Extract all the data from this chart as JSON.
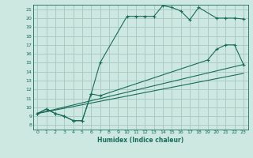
{
  "xlabel": "Humidex (Indice chaleur)",
  "bg_color": "#cce8e0",
  "grid_color": "#aaccc4",
  "line_color": "#1a6b5a",
  "xlim": [
    -0.5,
    23.5
  ],
  "ylim": [
    7.5,
    21.5
  ],
  "xticks": [
    0,
    1,
    2,
    3,
    4,
    5,
    6,
    7,
    8,
    9,
    10,
    11,
    12,
    13,
    14,
    15,
    16,
    17,
    18,
    19,
    20,
    21,
    22,
    23
  ],
  "yticks": [
    8,
    9,
    10,
    11,
    12,
    13,
    14,
    15,
    16,
    17,
    18,
    19,
    20,
    21
  ],
  "series": [
    {
      "x": [
        0,
        1,
        2,
        3,
        4,
        5,
        6,
        7,
        10,
        11,
        12,
        13,
        14,
        15,
        16,
        17,
        18,
        20,
        21,
        22,
        23
      ],
      "y": [
        9.3,
        9.8,
        9.3,
        9.0,
        8.5,
        8.5,
        11.5,
        15.0,
        20.2,
        20.2,
        20.2,
        20.2,
        21.4,
        21.2,
        20.8,
        19.8,
        21.2,
        20.0,
        20.0,
        20.0,
        19.9
      ],
      "marker": true
    },
    {
      "x": [
        0,
        1,
        2,
        3,
        4,
        5,
        6,
        7,
        19,
        20,
        21,
        22,
        23
      ],
      "y": [
        9.3,
        9.8,
        9.3,
        9.0,
        8.5,
        8.5,
        11.5,
        11.3,
        15.3,
        16.5,
        17.0,
        17.0,
        14.8
      ],
      "marker": true
    },
    {
      "x": [
        0,
        23
      ],
      "y": [
        9.3,
        14.8
      ],
      "marker": false
    },
    {
      "x": [
        0,
        23
      ],
      "y": [
        9.3,
        13.8
      ],
      "marker": false
    }
  ]
}
